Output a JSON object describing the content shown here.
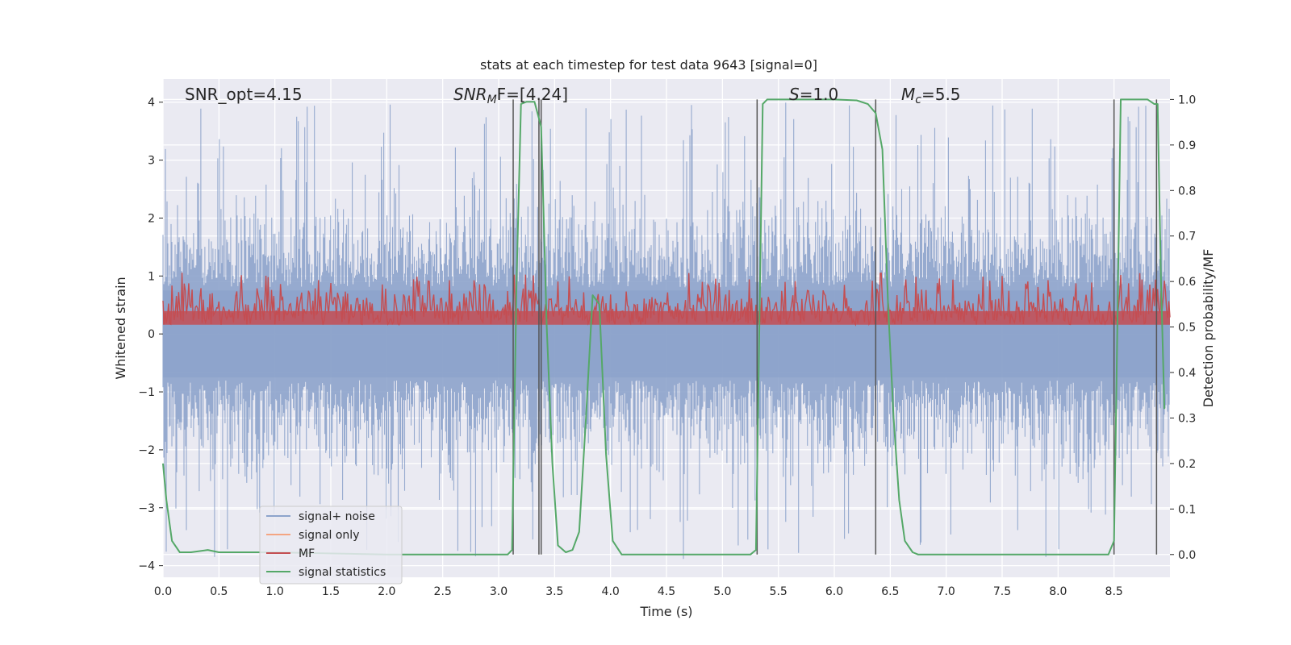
{
  "chart_data": {
    "type": "line",
    "title": "stats at each timestep for test data 9643 [signal=0]",
    "xlabel": "Time (s)",
    "ylabel": "Whitened strain",
    "y2label": "Detection probability/MF",
    "xlim": [
      0.0,
      9.0
    ],
    "ylim": [
      -4.2,
      4.4
    ],
    "y2lim": [
      -0.05,
      1.045
    ],
    "xticks": [
      0.0,
      0.5,
      1.0,
      1.5,
      2.0,
      2.5,
      3.0,
      3.5,
      4.0,
      4.5,
      5.0,
      5.5,
      6.0,
      6.5,
      7.0,
      7.5,
      8.0,
      8.5
    ],
    "xtick_labels": [
      "0.0",
      "0.5",
      "1.0",
      "1.5",
      "2.0",
      "2.5",
      "3.0",
      "3.5",
      "4.0",
      "4.5",
      "5.0",
      "5.5",
      "6.0",
      "6.5",
      "7.0",
      "7.5",
      "8.0",
      "8.5"
    ],
    "yticks": [
      4,
      3,
      2,
      1,
      0,
      -1,
      -2,
      -3,
      -4
    ],
    "ytick_labels": [
      "4",
      "3",
      "2",
      "1",
      "0",
      "−1",
      "−2",
      "−3",
      "−4"
    ],
    "y2ticks": [
      1.0,
      0.9,
      0.8,
      0.7,
      0.6,
      0.5,
      0.4,
      0.3,
      0.2,
      0.1,
      0.0
    ],
    "y2tick_labels": [
      "1.0",
      "0.9",
      "0.8",
      "0.7",
      "0.6",
      "0.5",
      "0.4",
      "0.3",
      "0.2",
      "0.1",
      "0.0"
    ],
    "grid": true,
    "legend_position": "lower-left",
    "annotations": {
      "snr_opt": "SNR_opt=4.15",
      "snr_mf_base": "SNR",
      "snr_mf_sub": "M",
      "snr_mf_rest": "F=[4.24]",
      "s_base": "S",
      "s_rest": "=1.0",
      "mc_base": "M",
      "mc_sub": "c",
      "mc_rest": "=5.5"
    },
    "series": [
      {
        "name": "signal+ noise",
        "color": "#8da3cb",
        "description_values": "dense noise between about -2.5 and 2.5 with spikes to ±4"
      },
      {
        "name": "signal only",
        "color": "#f4a582",
        "values": []
      },
      {
        "name": "MF",
        "color": "#c44e52",
        "axis": "y2",
        "level_range": [
          0.5,
          0.62
        ]
      },
      {
        "name": "signal statistics",
        "color": "#55a868",
        "axis": "y2",
        "x": [
          0.0,
          0.03,
          0.08,
          0.15,
          0.25,
          0.4,
          0.5,
          1.0,
          2.0,
          3.0,
          3.08,
          3.12,
          3.16,
          3.2,
          3.25,
          3.32,
          3.38,
          3.43,
          3.48,
          3.53,
          3.6,
          3.66,
          3.72,
          3.78,
          3.84,
          3.9,
          3.96,
          4.02,
          4.1,
          4.5,
          5.0,
          5.25,
          5.3,
          5.33,
          5.36,
          5.4,
          5.45,
          5.5,
          6.0,
          6.2,
          6.3,
          6.37,
          6.43,
          6.48,
          6.53,
          6.58,
          6.63,
          6.7,
          6.75,
          7.0,
          8.0,
          8.45,
          8.5,
          8.53,
          8.56,
          8.6,
          8.8,
          8.86,
          8.89,
          8.92,
          8.95
        ],
        "y": [
          0.2,
          0.12,
          0.03,
          0.005,
          0.005,
          0.01,
          0.005,
          0.005,
          0.0,
          0.0,
          0.0,
          0.01,
          0.6,
          0.99,
          0.995,
          0.995,
          0.94,
          0.5,
          0.2,
          0.02,
          0.005,
          0.01,
          0.05,
          0.3,
          0.57,
          0.55,
          0.22,
          0.03,
          0.0,
          0.0,
          0.0,
          0.0,
          0.01,
          0.5,
          0.99,
          1.0,
          1.0,
          1.0,
          1.0,
          0.998,
          0.99,
          0.97,
          0.89,
          0.55,
          0.3,
          0.12,
          0.03,
          0.005,
          0.0,
          0.0,
          0.0,
          0.0,
          0.03,
          0.5,
          1.0,
          1.0,
          1.0,
          0.99,
          0.99,
          0.6,
          0.32
        ]
      }
    ],
    "vertical_markers": [
      3.13,
      3.36,
      3.38,
      5.31,
      6.37,
      8.5,
      8.88
    ],
    "legend": [
      {
        "label": "signal+ noise",
        "color": "#8da3cb"
      },
      {
        "label": "signal only",
        "color": "#f4a582"
      },
      {
        "label": "MF",
        "color": "#c44e52"
      },
      {
        "label": "signal statistics",
        "color": "#55a868"
      }
    ]
  }
}
